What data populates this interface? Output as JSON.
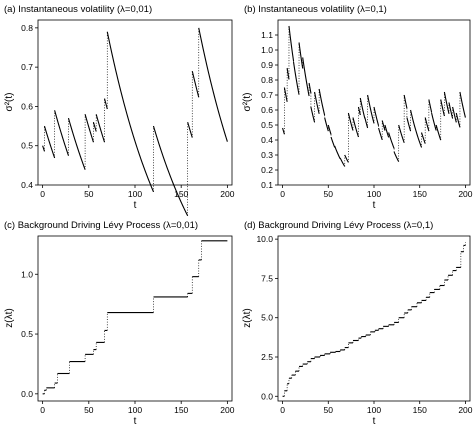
{
  "chart_data": [
    {
      "id": "a",
      "type": "line",
      "title": "(a) Instantaneous volatility (λ=0,01)",
      "xlabel": "t",
      "ylabel": "σ²(t)",
      "xlim": [
        -5,
        205
      ],
      "ylim": [
        0.4,
        0.82
      ],
      "xticks": [
        0,
        50,
        100,
        150,
        200
      ],
      "yticks": [
        0.4,
        0.5,
        0.6,
        0.7,
        0.8
      ],
      "ytick_labels": [
        "0.4",
        "0.5",
        "0.6",
        "0.7",
        "0.8"
      ],
      "decay": 0.0145,
      "end": 200,
      "start": [
        0,
        0.5
      ],
      "jumps": [
        [
          2,
          0.55
        ],
        [
          13,
          0.59
        ],
        [
          28,
          0.57
        ],
        [
          46,
          0.58
        ],
        [
          55,
          0.56
        ],
        [
          58,
          0.58
        ],
        [
          67,
          0.62
        ],
        [
          70,
          0.79
        ],
        [
          120,
          0.55
        ],
        [
          157,
          0.56
        ],
        [
          162,
          0.69
        ],
        [
          169,
          0.8
        ]
      ]
    },
    {
      "id": "b",
      "type": "line",
      "title": "(b) Instantaneous volatility (λ=0,1)",
      "xlabel": "t",
      "ylabel": "σ²(t)",
      "xlim": [
        -5,
        205
      ],
      "ylim": [
        0.1,
        1.2
      ],
      "xticks": [
        0,
        50,
        100,
        150,
        200
      ],
      "yticks": [
        0.1,
        0.2,
        0.3,
        0.4,
        0.5,
        0.6,
        0.7,
        0.8,
        0.9,
        1.0,
        1.1
      ],
      "ytick_labels": [
        "0.1",
        "0.2",
        "0.3",
        "0.4",
        "0.5",
        "0.6",
        "0.7",
        "0.8",
        "0.9",
        "1.0",
        "1.1"
      ],
      "decay": 0.045,
      "end": 200,
      "start": [
        0,
        0.48
      ],
      "jumps": [
        [
          2,
          0.75
        ],
        [
          5,
          0.88
        ],
        [
          7,
          1.16
        ],
        [
          12,
          0.92
        ],
        [
          18,
          1.05
        ],
        [
          22,
          0.95
        ],
        [
          29,
          0.78
        ],
        [
          31,
          0.62
        ],
        [
          35,
          0.72
        ],
        [
          40,
          0.74
        ],
        [
          46,
          0.55
        ],
        [
          50,
          0.5
        ],
        [
          53,
          0.42
        ],
        [
          57,
          0.36
        ],
        [
          63,
          0.28
        ],
        [
          68,
          0.3
        ],
        [
          72,
          0.58
        ],
        [
          77,
          0.55
        ],
        [
          83,
          0.62
        ],
        [
          85,
          0.68
        ],
        [
          90,
          0.55
        ],
        [
          93,
          0.7
        ],
        [
          100,
          0.62
        ],
        [
          105,
          0.48
        ],
        [
          109,
          0.53
        ],
        [
          112,
          0.5
        ],
        [
          116,
          0.45
        ],
        [
          122,
          0.32
        ],
        [
          127,
          0.5
        ],
        [
          133,
          0.7
        ],
        [
          136,
          0.55
        ],
        [
          140,
          0.6
        ],
        [
          145,
          0.48
        ],
        [
          152,
          0.45
        ],
        [
          156,
          0.55
        ],
        [
          160,
          0.67
        ],
        [
          163,
          0.58
        ],
        [
          168,
          0.5
        ],
        [
          173,
          0.67
        ],
        [
          177,
          0.72
        ],
        [
          182,
          0.65
        ],
        [
          186,
          0.62
        ],
        [
          190,
          0.58
        ],
        [
          194,
          0.72
        ]
      ]
    },
    {
      "id": "c",
      "type": "line",
      "title": "(c) Background Driving Lévy Process (λ=0,01)",
      "xlabel": "t",
      "ylabel": "z(λt)",
      "xlim": [
        -5,
        205
      ],
      "ylim": [
        -0.06,
        1.32
      ],
      "xticks": [
        0,
        50,
        100,
        150,
        200
      ],
      "yticks": [
        0.0,
        0.5,
        1.0
      ],
      "ytick_labels": [
        "0.0",
        "0.5",
        "1.0"
      ],
      "end": 200,
      "start": [
        0,
        0.0
      ],
      "jumps": [
        [
          2,
          0.03
        ],
        [
          4,
          0.05
        ],
        [
          13,
          0.09
        ],
        [
          16,
          0.17
        ],
        [
          29,
          0.27
        ],
        [
          46,
          0.33
        ],
        [
          55,
          0.37
        ],
        [
          58,
          0.43
        ],
        [
          67,
          0.53
        ],
        [
          70,
          0.68
        ],
        [
          120,
          0.81
        ],
        [
          157,
          0.84
        ],
        [
          162,
          0.98
        ],
        [
          169,
          1.12
        ],
        [
          172,
          1.28
        ]
      ]
    },
    {
      "id": "d",
      "type": "line",
      "title": "(d) Background Driving Lévy Process (λ=0,1)",
      "xlabel": "t",
      "ylabel": "z(λt)",
      "xlim": [
        -5,
        205
      ],
      "ylim": [
        -0.3,
        10.2
      ],
      "xticks": [
        0,
        50,
        100,
        150,
        200
      ],
      "yticks": [
        0.0,
        2.5,
        5.0,
        7.5,
        10.0
      ],
      "ytick_labels": [
        "0.0",
        "2.5",
        "5.0",
        "7.5",
        "10.0"
      ],
      "end": 200,
      "start": [
        0,
        0.0
      ],
      "jumps": [
        [
          2,
          0.35
        ],
        [
          5,
          0.8
        ],
        [
          7,
          1.15
        ],
        [
          10,
          1.35
        ],
        [
          14,
          1.6
        ],
        [
          18,
          1.9
        ],
        [
          22,
          2.05
        ],
        [
          27,
          2.2
        ],
        [
          31,
          2.4
        ],
        [
          35,
          2.5
        ],
        [
          41,
          2.6
        ],
        [
          46,
          2.7
        ],
        [
          52,
          2.8
        ],
        [
          58,
          2.85
        ],
        [
          63,
          2.95
        ],
        [
          68,
          3.1
        ],
        [
          72,
          3.4
        ],
        [
          77,
          3.55
        ],
        [
          83,
          3.7
        ],
        [
          86,
          3.8
        ],
        [
          91,
          3.9
        ],
        [
          96,
          4.1
        ],
        [
          101,
          4.2
        ],
        [
          105,
          4.3
        ],
        [
          110,
          4.45
        ],
        [
          116,
          4.55
        ],
        [
          122,
          4.7
        ],
        [
          127,
          5.0
        ],
        [
          133,
          5.3
        ],
        [
          137,
          5.5
        ],
        [
          141,
          5.7
        ],
        [
          147,
          5.95
        ],
        [
          152,
          6.1
        ],
        [
          157,
          6.3
        ],
        [
          161,
          6.6
        ],
        [
          166,
          6.8
        ],
        [
          172,
          7.05
        ],
        [
          177,
          7.4
        ],
        [
          181,
          7.7
        ],
        [
          186,
          8.0
        ],
        [
          190,
          8.2
        ],
        [
          195,
          9.2
        ],
        [
          198,
          9.6
        ],
        [
          200,
          9.8
        ]
      ]
    }
  ]
}
